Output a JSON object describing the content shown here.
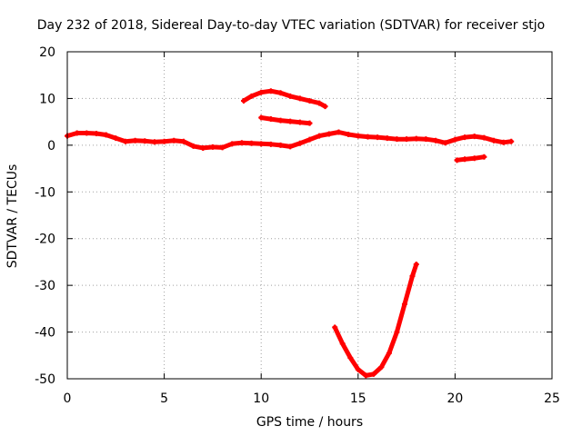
{
  "chart_data": {
    "type": "scatter",
    "title": "Day 232 of 2018, Sidereal Day-to-day VTEC variation (SDTVAR) for receiver stjo",
    "xlabel": "GPS time / hours",
    "ylabel": "SDTVAR / TECUs",
    "xlim": [
      0,
      25
    ],
    "ylim": [
      -50,
      20
    ],
    "xticks": [
      0,
      5,
      10,
      15,
      20,
      25
    ],
    "yticks": [
      -50,
      -40,
      -30,
      -20,
      -10,
      0,
      10,
      20
    ],
    "grid": true,
    "marker_color": "#ff0000",
    "series": [
      {
        "points": [
          [
            0.0,
            2.0
          ],
          [
            0.5,
            2.6
          ],
          [
            1.0,
            2.6
          ],
          [
            1.5,
            2.5
          ],
          [
            2.0,
            2.2
          ],
          [
            2.5,
            1.5
          ],
          [
            3.0,
            0.8
          ],
          [
            3.5,
            1.0
          ],
          [
            4.0,
            0.9
          ],
          [
            4.5,
            0.7
          ],
          [
            5.0,
            0.8
          ],
          [
            5.5,
            1.0
          ],
          [
            6.0,
            0.8
          ],
          [
            6.5,
            -0.2
          ],
          [
            7.0,
            -0.6
          ],
          [
            7.5,
            -0.4
          ],
          [
            8.0,
            -0.5
          ],
          [
            8.5,
            0.3
          ],
          [
            9.0,
            0.5
          ],
          [
            9.5,
            0.4
          ],
          [
            10.0,
            0.3
          ],
          [
            10.5,
            0.2
          ],
          [
            11.0,
            0.0
          ],
          [
            11.5,
            -0.3
          ],
          [
            12.0,
            0.4
          ],
          [
            12.5,
            1.2
          ],
          [
            13.0,
            2.0
          ],
          [
            13.5,
            2.4
          ],
          [
            14.0,
            2.8
          ],
          [
            14.5,
            2.3
          ],
          [
            15.0,
            2.0
          ],
          [
            15.5,
            1.8
          ],
          [
            16.0,
            1.7
          ],
          [
            16.5,
            1.5
          ],
          [
            17.0,
            1.3
          ],
          [
            17.5,
            1.3
          ],
          [
            18.0,
            1.4
          ],
          [
            18.5,
            1.3
          ],
          [
            19.0,
            1.0
          ],
          [
            19.5,
            0.5
          ],
          [
            20.0,
            1.2
          ],
          [
            20.5,
            1.7
          ],
          [
            21.0,
            1.9
          ],
          [
            21.5,
            1.6
          ],
          [
            22.0,
            1.0
          ],
          [
            22.5,
            0.6
          ],
          [
            22.9,
            0.8
          ]
        ]
      },
      {
        "points": [
          [
            9.1,
            9.5
          ],
          [
            9.5,
            10.5
          ],
          [
            10.0,
            11.3
          ],
          [
            10.5,
            11.6
          ],
          [
            11.0,
            11.2
          ],
          [
            11.5,
            10.5
          ],
          [
            12.0,
            10.0
          ],
          [
            12.5,
            9.5
          ],
          [
            13.0,
            9.0
          ],
          [
            13.3,
            8.3
          ]
        ]
      },
      {
        "points": [
          [
            10.0,
            5.9
          ],
          [
            10.5,
            5.6
          ],
          [
            11.0,
            5.3
          ],
          [
            11.5,
            5.1
          ],
          [
            12.0,
            4.9
          ],
          [
            12.5,
            4.7
          ]
        ]
      },
      {
        "points": [
          [
            20.1,
            -3.2
          ],
          [
            20.5,
            -3.0
          ],
          [
            21.0,
            -2.8
          ],
          [
            21.5,
            -2.5
          ]
        ]
      },
      {
        "points": [
          [
            13.8,
            -39.0
          ],
          [
            14.2,
            -42.5
          ],
          [
            14.6,
            -45.5
          ],
          [
            15.0,
            -48.0
          ],
          [
            15.4,
            -49.3
          ],
          [
            15.8,
            -49.0
          ],
          [
            16.2,
            -47.5
          ],
          [
            16.6,
            -44.5
          ],
          [
            17.0,
            -40.0
          ],
          [
            17.4,
            -34.0
          ],
          [
            17.8,
            -28.0
          ],
          [
            18.0,
            -25.5
          ]
        ]
      }
    ]
  }
}
